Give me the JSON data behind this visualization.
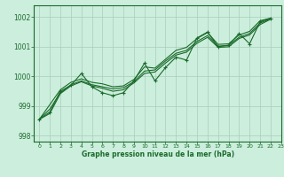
{
  "title": "Graphe pression niveau de la mer (hPa)",
  "background_color": "#cceedd",
  "grid_color": "#aaccbb",
  "line_color": "#1a6b2a",
  "xlim": [
    -0.5,
    23
  ],
  "ylim": [
    997.8,
    1002.4
  ],
  "yticks": [
    998,
    999,
    1000,
    1001,
    1002
  ],
  "xticks": [
    0,
    1,
    2,
    3,
    4,
    5,
    6,
    7,
    8,
    9,
    10,
    11,
    12,
    13,
    14,
    15,
    16,
    17,
    18,
    19,
    20,
    21,
    22,
    23
  ],
  "x": [
    0,
    1,
    2,
    3,
    4,
    5,
    6,
    7,
    8,
    9,
    10,
    11,
    12,
    13,
    14,
    15,
    16,
    17,
    18,
    19,
    20,
    21,
    22
  ],
  "jagged_y": [
    998.55,
    998.8,
    999.5,
    999.7,
    1000.1,
    999.65,
    999.45,
    999.35,
    999.45,
    999.85,
    1000.45,
    999.85,
    1000.3,
    1000.65,
    1000.55,
    1001.3,
    1001.5,
    1001.0,
    1001.05,
    1001.45,
    1001.1,
    1001.85,
    1001.95
  ],
  "smooth1_y": [
    998.55,
    998.9,
    999.45,
    999.72,
    999.85,
    999.72,
    999.65,
    999.58,
    999.62,
    999.82,
    1000.18,
    1000.22,
    1000.52,
    1000.78,
    1000.88,
    1001.18,
    1001.38,
    1001.02,
    1001.05,
    1001.32,
    1001.45,
    1001.8,
    1001.95
  ],
  "smooth2_y": [
    998.55,
    999.05,
    999.55,
    999.8,
    999.92,
    999.8,
    999.75,
    999.65,
    999.68,
    999.9,
    1000.32,
    1000.28,
    1000.58,
    1000.88,
    1000.98,
    1001.28,
    1001.48,
    1001.08,
    1001.1,
    1001.4,
    1001.52,
    1001.88,
    1001.97
  ],
  "smooth3_y": [
    998.55,
    998.75,
    999.42,
    999.68,
    999.82,
    999.68,
    999.6,
    999.5,
    999.55,
    999.78,
    1000.1,
    1000.15,
    1000.45,
    1000.72,
    1000.82,
    1001.12,
    1001.32,
    1000.98,
    1001.0,
    1001.28,
    1001.4,
    1001.75,
    1001.93
  ]
}
